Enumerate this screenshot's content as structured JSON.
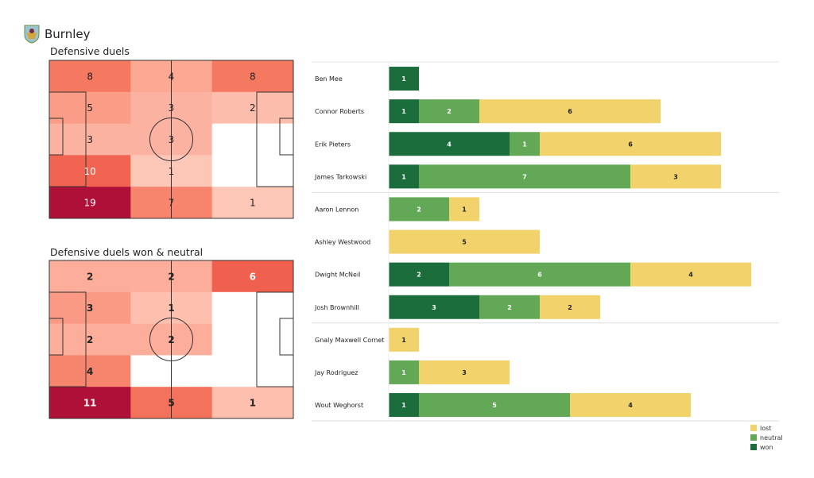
{
  "header": {
    "team": "Burnley"
  },
  "chart_data": [
    {
      "type": "heatmap",
      "title": "Defensive duels",
      "grid": [
        [
          8,
          4,
          8
        ],
        [
          5,
          3,
          2
        ],
        [
          3,
          3,
          0
        ],
        [
          10,
          1,
          0
        ],
        [
          19,
          7,
          1
        ]
      ]
    },
    {
      "type": "heatmap",
      "title": "Defensive duels won & neutral",
      "grid": [
        [
          2,
          2,
          6
        ],
        [
          3,
          1,
          0
        ],
        [
          2,
          2,
          0
        ],
        [
          4,
          0,
          0
        ],
        [
          11,
          5,
          1
        ]
      ]
    },
    {
      "type": "bar",
      "orientation": "horizontal",
      "stacked": true,
      "categories": [
        "Ben Mee",
        "Connor Roberts",
        "Erik Pieters",
        "James  Tarkowski",
        "Aaron  Lennon",
        "Ashley Westwood",
        "Dwight McNeil",
        "Josh Brownhill",
        "Gnaly Maxwell Cornet",
        "Jay Rodriguez",
        "Wout Weghorst"
      ],
      "groups_after": [
        3,
        7
      ],
      "series": [
        {
          "name": "won",
          "color": "#1b6e3b",
          "values": [
            1,
            1,
            4,
            1,
            0,
            0,
            2,
            3,
            0,
            0,
            1
          ]
        },
        {
          "name": "neutral",
          "color": "#62a857",
          "values": [
            0,
            2,
            1,
            7,
            2,
            0,
            6,
            2,
            0,
            1,
            5
          ]
        },
        {
          "name": "lost",
          "color": "#f1d26b",
          "values": [
            0,
            6,
            6,
            3,
            1,
            5,
            4,
            2,
            1,
            3,
            4
          ]
        }
      ],
      "legend_order": [
        "lost",
        "neutral",
        "won"
      ],
      "legend": "bottom-right"
    }
  ]
}
